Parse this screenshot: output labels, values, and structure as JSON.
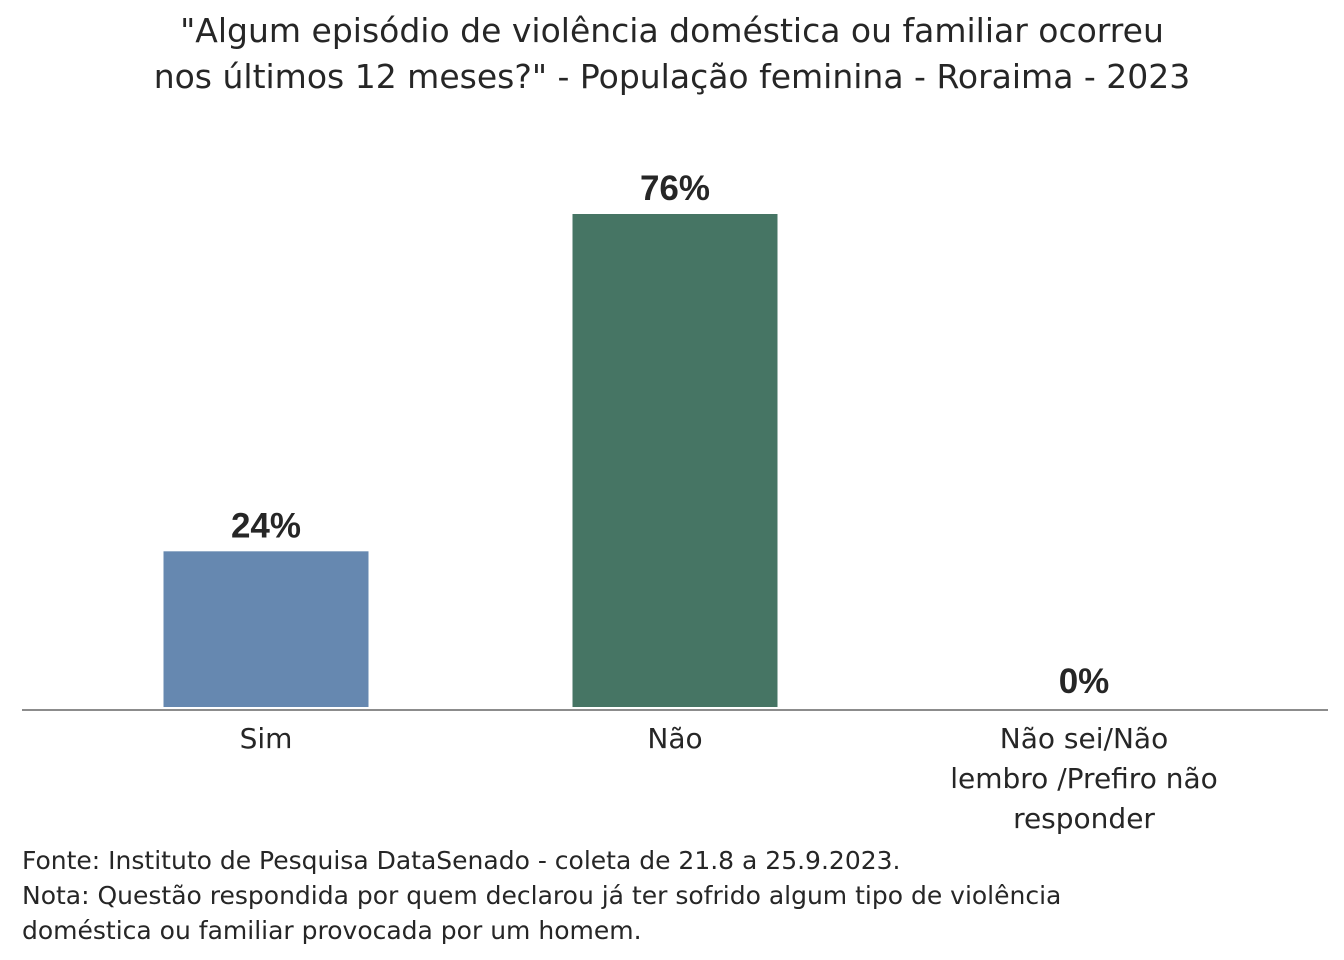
{
  "chart_data": {
    "type": "bar",
    "title_lines": [
      "\"Algum episódio de violência doméstica ou familiar ocorreu",
      "nos últimos 12 meses?\" - População feminina - Roraima - 2023"
    ],
    "categories": [
      [
        "Sim"
      ],
      [
        "Não"
      ],
      [
        "Não sei/Não",
        "lembro /Prefiro não",
        "responder"
      ]
    ],
    "values": [
      24,
      76,
      0
    ],
    "value_labels": [
      "24%",
      "76%",
      "0%"
    ],
    "colors": [
      "#6688b0",
      "#467564",
      "#8c8c8c"
    ],
    "ylim": [
      0,
      76
    ],
    "grid": false,
    "legend": "none"
  },
  "notes": {
    "source": "Fonte: Instituto de Pesquisa DataSenado - coleta de 21.8 a 25.9.2023.",
    "note_lines": [
      "Nota: Questão respondida por quem declarou já ter sofrido algum tipo de violência",
      "doméstica ou familiar provocada por um homem."
    ]
  }
}
